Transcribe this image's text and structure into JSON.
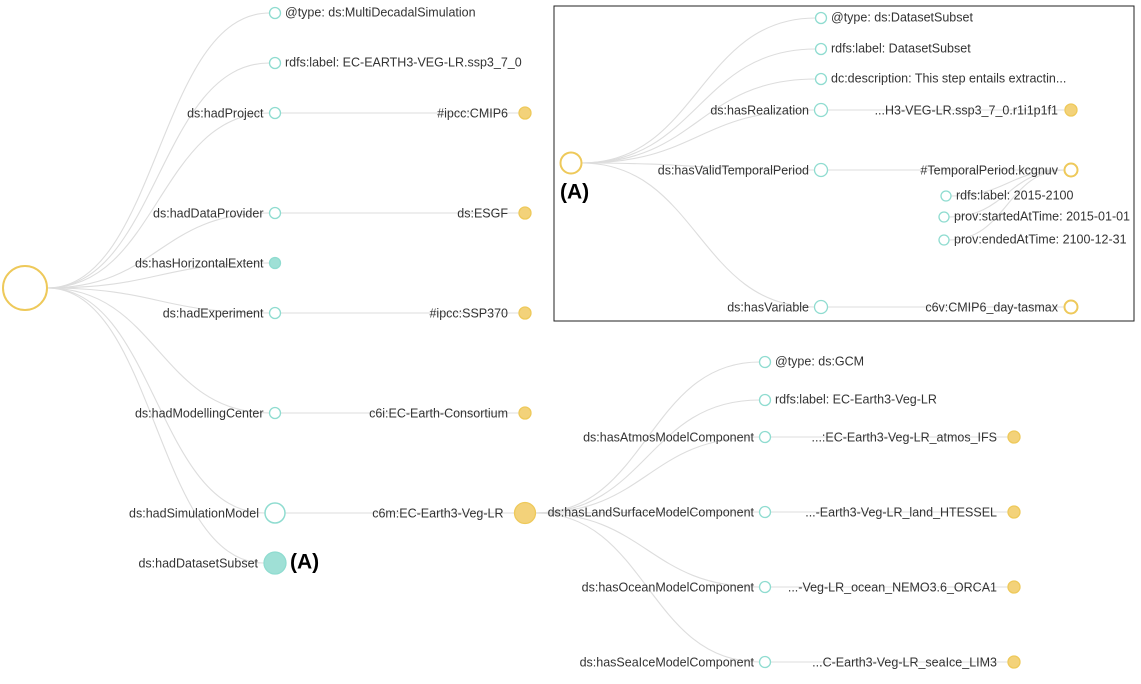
{
  "root": {
    "children": [
      {
        "label": "@type: ds:MultiDecadalSimulation"
      },
      {
        "label": "rdfs:label: EC-EARTH3-VEG-LR.ssp3_7_0"
      },
      {
        "label": "ds:hadProject",
        "target": "#ipcc:CMIP6"
      },
      {
        "label": "ds:hadDataProvider",
        "target": "ds:ESGF"
      },
      {
        "label": "ds:hasHorizontalExtent"
      },
      {
        "label": "ds:hadExperiment",
        "target": "#ipcc:SSP370"
      },
      {
        "label": "ds:hadModellingCenter",
        "target": "c6i:EC-Earth-Consortium"
      },
      {
        "label": "ds:hadSimulationModel",
        "target": "c6m:EC-Earth3-Veg-LR"
      },
      {
        "label": "ds:hadDatasetSubset",
        "marker": "(A)"
      }
    ]
  },
  "model": {
    "label": "c6m:EC-Earth3-Veg-LR",
    "children": [
      {
        "label": "@type: ds:GCM"
      },
      {
        "label": "rdfs:label: EC-Earth3-Veg-LR"
      },
      {
        "label": "ds:hasAtmosModelComponent",
        "target": "...:EC-Earth3-Veg-LR_atmos_IFS"
      },
      {
        "label": "ds:hasLandSurfaceModelComponent",
        "target": "...-Earth3-Veg-LR_land_HTESSEL"
      },
      {
        "label": "ds:hasOceanModelComponent",
        "target": "...-Veg-LR_ocean_NEMO3.6_ORCA1"
      },
      {
        "label": "ds:hasSeaIceModelComponent",
        "target": "...C-Earth3-Veg-LR_seaIce_LIM3"
      }
    ]
  },
  "inset": {
    "marker": "(A)",
    "children": [
      {
        "label": "@type: ds:DatasetSubset"
      },
      {
        "label": "rdfs:label: DatasetSubset"
      },
      {
        "label": "dc:description: This step entails extractin..."
      },
      {
        "label": "ds:hasRealization",
        "target": "...H3-VEG-LR.ssp3_7_0.r1i1p1f1"
      },
      {
        "label": "ds:hasValidTemporalPeriod",
        "target": "#TemporalPeriod.kcgnuv"
      },
      {
        "label": "ds:hasVariable",
        "target": "c6v:CMIP6_day-tasmax"
      }
    ],
    "period": [
      {
        "label": "rdfs:label: 2015-2100"
      },
      {
        "label": "prov:startedAtTime: 2015-01-01"
      },
      {
        "label": "prov:endedAtTime: 2100-12-31"
      }
    ]
  },
  "colors": {
    "teal": "#8fdcd0",
    "teal_fill": "#9fe0d6",
    "yellow": "#eec95a",
    "yellow_fill": "#f3d27a",
    "link": "#dddddd"
  }
}
